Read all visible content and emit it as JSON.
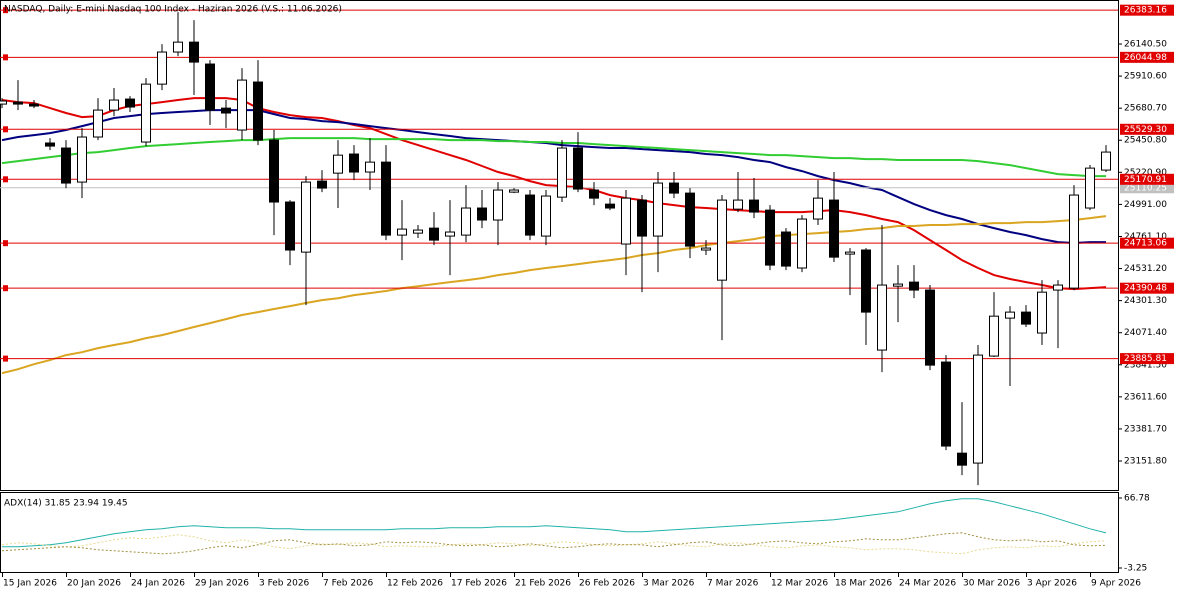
{
  "chart_data": [
    {
      "type": "candlestick",
      "title": "NASDAQ, Daily:  E-mini Nasdaq 100 Index - Haziran 2026 (V.S.: 11.06.2026)",
      "categories": [
        "15 Jan 2026",
        null,
        null,
        null,
        "20 Jan 2026",
        null,
        null,
        null,
        "24 Jan 2026",
        null,
        null,
        null,
        "29 Jan 2026",
        null,
        null,
        null,
        "3 Feb 2026",
        null,
        null,
        null,
        "7 Feb 2026",
        null,
        null,
        null,
        "12 Feb 2026",
        null,
        null,
        null,
        "17 Feb 2026",
        null,
        null,
        null,
        "21 Feb 2026",
        null,
        null,
        null,
        "26 Feb 2026",
        null,
        null,
        null,
        "3 Mar 2026",
        null,
        null,
        null,
        "7 Mar 2026",
        null,
        null,
        null,
        "12 Mar 2026",
        null,
        null,
        null,
        "18 Mar 2026",
        null,
        null,
        null,
        "24 Mar 2026",
        null,
        null,
        null,
        "30 Mar 2026",
        null,
        null,
        null,
        "3 Apr 2026",
        null,
        null,
        null,
        "9 Apr 2026",
        null
      ],
      "open": [
        25710,
        25724,
        25710,
        25431,
        25395,
        25151,
        25474,
        25667,
        25746,
        25438,
        25853,
        26083,
        26154,
        25997,
        25681,
        25524,
        25868,
        25452,
        25008,
        24649,
        25158,
        25215,
        25352,
        25223,
        25294,
        24771,
        24785,
        24821,
        24764,
        24771,
        24965,
        24879,
        25079,
        25058,
        24764,
        25043,
        25395,
        25094,
        24993,
        24707,
        25022,
        24764,
        25144,
        25072,
        24664,
        24448,
        24957,
        25022,
        24950,
        24793,
        24535,
        24886,
        25022,
        24635,
        24664,
        23947,
        24405,
        24434,
        24377,
        23861,
        23208,
        23137,
        23904,
        24176,
        24219,
        24069,
        24377,
        24391,
        24965,
        25237
      ],
      "high": [
        25753,
        25882,
        25739,
        25466,
        25452,
        25538,
        25753,
        25825,
        25767,
        25896,
        26140,
        26369,
        26312,
        26025,
        25739,
        25968,
        26025,
        25524,
        25022,
        25194,
        25237,
        25452,
        25416,
        25466,
        25416,
        25022,
        24843,
        24936,
        25022,
        25129,
        25094,
        25151,
        25108,
        25094,
        25094,
        25452,
        25509,
        25151,
        25036,
        25094,
        25058,
        25223,
        25223,
        25108,
        24735,
        25058,
        25223,
        25180,
        24986,
        24821,
        24914,
        25165,
        25223,
        24678,
        24678,
        24843,
        24556,
        24556,
        24413,
        23911,
        23574,
        23983,
        24362,
        24262,
        24269,
        24448,
        24448,
        25129,
        25273,
        25416
      ],
      "low": [
        25681,
        25667,
        25681,
        25380,
        25108,
        25036,
        25452,
        25624,
        25653,
        25409,
        25810,
        26054,
        25775,
        25560,
        25538,
        25452,
        25416,
        24771,
        24556,
        24269,
        25079,
        24965,
        25165,
        25094,
        24735,
        24592,
        24750,
        24699,
        24484,
        24721,
        24821,
        24699,
        25072,
        24735,
        24699,
        25008,
        25079,
        24986,
        24950,
        24484,
        24362,
        24506,
        25036,
        24606,
        24628,
        24018,
        24936,
        24893,
        24520,
        24520,
        24506,
        24843,
        24578,
        24341,
        23983,
        23789,
        24147,
        24319,
        23803,
        23230,
        23051,
        22979,
        23897,
        23689,
        24112,
        23983,
        23961,
        24377,
        24950,
        25223
      ],
      "close": [
        25732,
        25710,
        25696,
        25409,
        25144,
        25474,
        25667,
        25739,
        25689,
        25853,
        26083,
        26154,
        26011,
        25667,
        25646,
        25882,
        25452,
        25008,
        24664,
        25151,
        25108,
        25344,
        25223,
        25294,
        24771,
        24814,
        24807,
        24735,
        24793,
        24965,
        24879,
        25094,
        25094,
        24771,
        25051,
        25395,
        25101,
        25036,
        24965,
        25036,
        24764,
        25144,
        25072,
        24692,
        24678,
        25022,
        25022,
        24936,
        24556,
        24549,
        24886,
        25036,
        24613,
        24649,
        24219,
        24413,
        24420,
        24377,
        23839,
        23259,
        23122,
        23911,
        24190,
        24219,
        24133,
        24362,
        24413,
        25058,
        25251,
        25366
      ],
      "up_color": "#ffffff",
      "down_color": "#000000",
      "lines": [
        {
          "color": "#e00000",
          "values": [
            25739,
            25724,
            25717,
            25681,
            25646,
            25617,
            25624,
            25667,
            25696,
            25710,
            25724,
            25739,
            25753,
            25753,
            25753,
            25739,
            25681,
            25653,
            25631,
            25617,
            25610,
            25588,
            25560,
            25538,
            25495,
            25452,
            25416,
            25380,
            25344,
            25309,
            25266,
            25223,
            25194,
            25158,
            25129,
            25122,
            25115,
            25094,
            25058,
            25036,
            25022,
            25000,
            24986,
            24972,
            24965,
            24957,
            24950,
            24943,
            24936,
            24936,
            24936,
            24943,
            24950,
            24936,
            24914,
            24886,
            24864,
            24807,
            24735,
            24664,
            24592,
            24535,
            24484,
            24456,
            24434,
            24413,
            24391,
            24384,
            24391,
            24398
          ]
        },
        {
          "color": "#000080",
          "values": [
            25452,
            25474,
            25488,
            25502,
            25524,
            25552,
            25581,
            25610,
            25624,
            25638,
            25646,
            25653,
            25660,
            25667,
            25667,
            25667,
            25667,
            25638,
            25610,
            25603,
            25588,
            25581,
            25567,
            25552,
            25538,
            25524,
            25509,
            25495,
            25481,
            25466,
            25459,
            25452,
            25445,
            25438,
            25431,
            25416,
            25409,
            25402,
            25395,
            25395,
            25387,
            25380,
            25373,
            25366,
            25352,
            25344,
            25330,
            25309,
            25294,
            25258,
            25230,
            25194,
            25165,
            25144,
            25115,
            25094,
            25043,
            24993,
            24950,
            24914,
            24886,
            24850,
            24821,
            24793,
            24771,
            24742,
            24721,
            24714,
            24721,
            24721
          ]
        },
        {
          "color": "#32cd32",
          "values": [
            25287,
            25301,
            25316,
            25330,
            25344,
            25359,
            25366,
            25380,
            25395,
            25409,
            25416,
            25423,
            25431,
            25438,
            25445,
            25452,
            25452,
            25459,
            25466,
            25466,
            25466,
            25466,
            25466,
            25459,
            25459,
            25459,
            25459,
            25459,
            25452,
            25452,
            25452,
            25445,
            25445,
            25438,
            25438,
            25431,
            25431,
            25423,
            25416,
            25409,
            25402,
            25395,
            25387,
            25380,
            25373,
            25366,
            25359,
            25352,
            25344,
            25344,
            25337,
            25330,
            25323,
            25323,
            25316,
            25316,
            25309,
            25309,
            25309,
            25309,
            25309,
            25301,
            25287,
            25273,
            25251,
            25230,
            25208,
            25201,
            25194,
            25194
          ]
        },
        {
          "color": "#daa520",
          "values": [
            23782,
            23810,
            23846,
            23875,
            23911,
            23932,
            23961,
            23983,
            24004,
            24033,
            24054,
            24083,
            24112,
            24140,
            24169,
            24198,
            24219,
            24241,
            24262,
            24284,
            24305,
            24319,
            24341,
            24355,
            24370,
            24391,
            24405,
            24420,
            24434,
            24448,
            24463,
            24484,
            24499,
            24520,
            24535,
            24549,
            24563,
            24578,
            24592,
            24606,
            24628,
            24642,
            24664,
            24678,
            24699,
            24714,
            24728,
            24742,
            24764,
            24771,
            24778,
            24785,
            24793,
            24800,
            24814,
            24821,
            24836,
            24836,
            24843,
            24843,
            24850,
            24850,
            24857,
            24857,
            24864,
            24864,
            24871,
            24879,
            24893,
            24907
          ]
        }
      ],
      "levels": {
        "color": "#e00000",
        "values": [
          26383.16,
          26044.98,
          {
            "value": 25529.3,
            "label": "25529.30"
          },
          25170.91,
          24713.06,
          24390.48,
          23885.81
        ]
      },
      "price_line": {
        "value": 25110.25,
        "color": "#c0c0c0"
      },
      "ylim": [
        22944,
        26456
      ],
      "yticks": [
        {
          "value": 26140.5,
          "label": "26140.50"
        },
        {
          "value": 25910.6,
          "label": "25910.60"
        },
        {
          "value": 25680.7,
          "label": "25680.70"
        },
        {
          "value": 25450.8,
          "label": "25450.80"
        },
        {
          "value": 25220.9,
          "label": "25220.90"
        },
        {
          "value": 24991,
          "label": "24991.00"
        },
        {
          "value": 24761.1,
          "label": "24761.10"
        },
        {
          "value": 24531.2,
          "label": "24531.20"
        },
        {
          "value": 24301.3,
          "label": "24301.30"
        },
        {
          "value": 24071.4,
          "label": "24071.40"
        },
        {
          "value": 23841.5,
          "label": "23841.50"
        },
        {
          "value": 23611.6,
          "label": "23611.60"
        },
        {
          "value": 23381.7,
          "label": "23381.70"
        },
        {
          "value": 23151.8,
          "label": "23151.80"
        }
      ]
    },
    {
      "type": "line",
      "label": "ADX(14) 31.85 23.94 19.45",
      "series": [
        {
          "color": "#20b2aa",
          "dash": "solid",
          "values": [
            18,
            18,
            19,
            20,
            22,
            25,
            28,
            31,
            33,
            35,
            36,
            38,
            39,
            38,
            37,
            37,
            37,
            36,
            36,
            35,
            35,
            35,
            35,
            35,
            35,
            36,
            36,
            36,
            37,
            37,
            37,
            38,
            38,
            38,
            39,
            38,
            37,
            36,
            35,
            33,
            33,
            34,
            35,
            36,
            37,
            38,
            39,
            40,
            41,
            42,
            43,
            44,
            45,
            47,
            49,
            51,
            53,
            57,
            61,
            64,
            66,
            66,
            63,
            59,
            55,
            51,
            46,
            41,
            36,
            31.85
          ]
        },
        {
          "color": "#e8d890",
          "dash": "dotted",
          "values": [
            20,
            22,
            21,
            19,
            18,
            19,
            22,
            25,
            27,
            26,
            28,
            30,
            28,
            24,
            22,
            25,
            22,
            18,
            16,
            19,
            21,
            20,
            22,
            21,
            18,
            19,
            18,
            18,
            20,
            21,
            20,
            22,
            21,
            19,
            21,
            23,
            22,
            20,
            19,
            20,
            21,
            23,
            21,
            19,
            18,
            21,
            22,
            20,
            18,
            17,
            19,
            20,
            18,
            17,
            15,
            16,
            16,
            15,
            13,
            12,
            11,
            15,
            17,
            18,
            17,
            19,
            18,
            21,
            23,
            23.94
          ]
        },
        {
          "color": "#a09040",
          "dash": "dotted",
          "values": [
            14,
            15,
            16,
            17,
            18,
            17,
            15,
            14,
            13,
            12,
            11,
            12,
            14,
            17,
            19,
            17,
            20,
            24,
            25,
            22,
            20,
            21,
            19,
            20,
            23,
            22,
            23,
            22,
            20,
            19,
            20,
            18,
            19,
            21,
            19,
            17,
            18,
            20,
            21,
            20,
            20,
            18,
            20,
            22,
            23,
            20,
            19,
            21,
            23,
            24,
            22,
            21,
            23,
            24,
            26,
            25,
            25,
            27,
            29,
            31,
            32,
            28,
            25,
            24,
            25,
            23,
            24,
            20,
            19,
            19.45
          ]
        }
      ],
      "ylim": [
        -7.25,
        72.78
      ],
      "yticks": [
        66.78,
        -3.25
      ]
    }
  ]
}
